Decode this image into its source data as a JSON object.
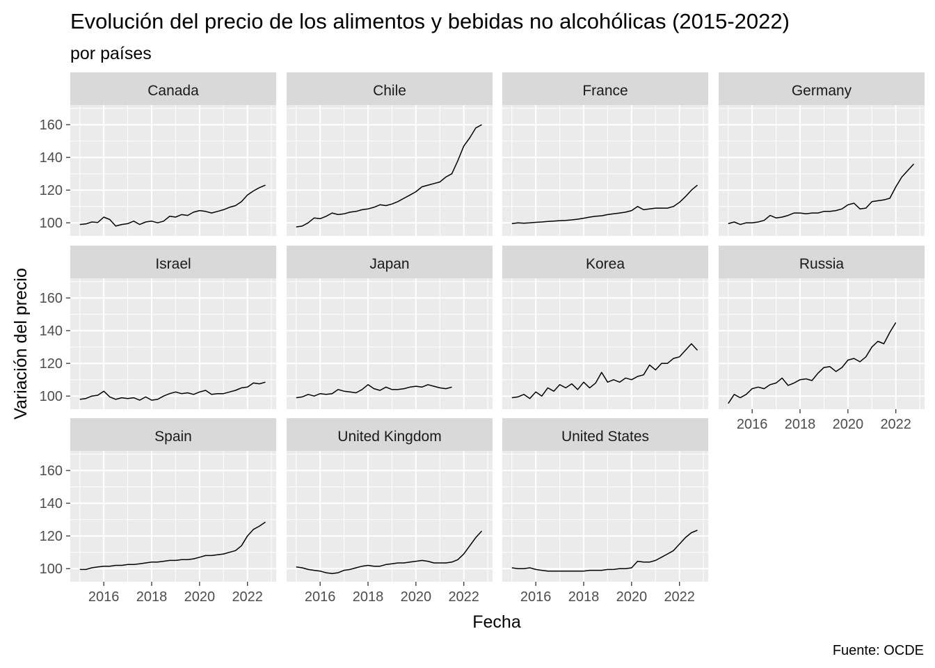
{
  "chart_data": {
    "type": "line",
    "title": "Evolución del precio de los alimentos y bebidas no alcohólicas (2015-2022)",
    "subtitle": "por países",
    "xlabel": "Fecha",
    "ylabel": "Variación del precio",
    "caption": "Fuente: OCDE",
    "xlim": [
      2014.6,
      2023.2
    ],
    "ylim": [
      92,
      172
    ],
    "x_ticks": [
      2016,
      2018,
      2020,
      2022
    ],
    "x_tick_labels": [
      "2016",
      "2018",
      "2020",
      "2022"
    ],
    "y_ticks": [
      100,
      120,
      140,
      160
    ],
    "y_tick_labels": [
      "100",
      "120",
      "140",
      "160"
    ],
    "grid": true,
    "facets": [
      {
        "name": "Canada",
        "x": [
          2015.0,
          2015.25,
          2015.5,
          2015.75,
          2016.0,
          2016.25,
          2016.5,
          2016.75,
          2017.0,
          2017.25,
          2017.5,
          2017.75,
          2018.0,
          2018.25,
          2018.5,
          2018.75,
          2019.0,
          2019.25,
          2019.5,
          2019.75,
          2020.0,
          2020.25,
          2020.5,
          2020.75,
          2021.0,
          2021.25,
          2021.5,
          2021.75,
          2022.0,
          2022.25,
          2022.5,
          2022.75
        ],
        "y": [
          99,
          99.3,
          100.5,
          100.2,
          103.5,
          102,
          98,
          99,
          99.5,
          101,
          99,
          100.5,
          101,
          100,
          101,
          104,
          103.5,
          105,
          104.5,
          106.5,
          107.5,
          107,
          106,
          107,
          108,
          109.5,
          110.5,
          113,
          117,
          119.5,
          121.5,
          123
        ]
      },
      {
        "name": "Chile",
        "x": [
          2015.0,
          2015.25,
          2015.5,
          2015.75,
          2016.0,
          2016.25,
          2016.5,
          2016.75,
          2017.0,
          2017.25,
          2017.5,
          2017.75,
          2018.0,
          2018.25,
          2018.5,
          2018.75,
          2019.0,
          2019.25,
          2019.5,
          2019.75,
          2020.0,
          2020.25,
          2020.5,
          2020.75,
          2021.0,
          2021.25,
          2021.5,
          2021.75,
          2022.0,
          2022.25,
          2022.5,
          2022.75
        ],
        "y": [
          97.5,
          98,
          100,
          103,
          102.5,
          104,
          106,
          105,
          105.5,
          106.5,
          107,
          108,
          108.5,
          109.5,
          111,
          110.5,
          111.5,
          113,
          115,
          117,
          119,
          122,
          123,
          124,
          125,
          128,
          130,
          138,
          147,
          152,
          158,
          160
        ]
      },
      {
        "name": "France",
        "x": [
          2015.0,
          2015.25,
          2015.5,
          2015.75,
          2016.0,
          2016.25,
          2016.5,
          2016.75,
          2017.0,
          2017.25,
          2017.5,
          2017.75,
          2018.0,
          2018.25,
          2018.5,
          2018.75,
          2019.0,
          2019.25,
          2019.5,
          2019.75,
          2020.0,
          2020.25,
          2020.5,
          2020.75,
          2021.0,
          2021.25,
          2021.5,
          2021.75,
          2022.0,
          2022.25,
          2022.5,
          2022.75
        ],
        "y": [
          99.5,
          100,
          99.8,
          100,
          100.3,
          100.5,
          100.8,
          101,
          101.3,
          101.5,
          101.8,
          102.2,
          102.8,
          103.5,
          104,
          104.3,
          105,
          105.5,
          106,
          106.5,
          107.5,
          110,
          108,
          108.5,
          109,
          109,
          109,
          110,
          112.5,
          116,
          120,
          123
        ]
      },
      {
        "name": "Germany",
        "x": [
          2015.0,
          2015.25,
          2015.5,
          2015.75,
          2016.0,
          2016.25,
          2016.5,
          2016.75,
          2017.0,
          2017.25,
          2017.5,
          2017.75,
          2018.0,
          2018.25,
          2018.5,
          2018.75,
          2019.0,
          2019.25,
          2019.5,
          2019.75,
          2020.0,
          2020.25,
          2020.5,
          2020.75,
          2021.0,
          2021.25,
          2021.5,
          2021.75,
          2022.0,
          2022.25,
          2022.5,
          2022.75
        ],
        "y": [
          99.5,
          100.5,
          99,
          100,
          100,
          100.5,
          101.5,
          104.5,
          103,
          103.5,
          104.5,
          106,
          106,
          105.5,
          106,
          106,
          107,
          107,
          107.5,
          108.5,
          111,
          112,
          108.5,
          109,
          113,
          113.5,
          114,
          115,
          122,
          128,
          132,
          136
        ]
      },
      {
        "name": "Israel",
        "x": [
          2015.0,
          2015.25,
          2015.5,
          2015.75,
          2016.0,
          2016.25,
          2016.5,
          2016.75,
          2017.0,
          2017.25,
          2017.5,
          2017.75,
          2018.0,
          2018.25,
          2018.5,
          2018.75,
          2019.0,
          2019.25,
          2019.5,
          2019.75,
          2020.0,
          2020.25,
          2020.5,
          2020.75,
          2021.0,
          2021.25,
          2021.5,
          2021.75,
          2022.0,
          2022.25,
          2022.5,
          2022.75
        ],
        "y": [
          98,
          98.5,
          100,
          100.5,
          103,
          99.5,
          98,
          99,
          98.5,
          99,
          97.5,
          99.5,
          97.5,
          98,
          100,
          101.5,
          102.5,
          101.5,
          102,
          101,
          102.5,
          103.5,
          101,
          101.5,
          101.5,
          102.5,
          103.5,
          105,
          105.5,
          108,
          107.5,
          108.5
        ]
      },
      {
        "name": "Japan",
        "x": [
          2015.0,
          2015.25,
          2015.5,
          2015.75,
          2016.0,
          2016.25,
          2016.5,
          2016.75,
          2017.0,
          2017.25,
          2017.5,
          2017.75,
          2018.0,
          2018.25,
          2018.5,
          2018.75,
          2019.0,
          2019.25,
          2019.5,
          2019.75,
          2020.0,
          2020.25,
          2020.5,
          2020.75,
          2021.0,
          2021.25,
          2021.5
        ],
        "y": [
          99,
          99.5,
          101,
          100,
          101.5,
          101,
          101.5,
          104,
          103,
          102.5,
          102,
          104,
          107,
          104.5,
          103.5,
          105.5,
          104,
          104,
          104.5,
          105.5,
          106,
          105.5,
          107,
          106,
          105,
          104.5,
          105.5
        ]
      },
      {
        "name": "Korea",
        "x": [
          2015.0,
          2015.25,
          2015.5,
          2015.75,
          2016.0,
          2016.25,
          2016.5,
          2016.75,
          2017.0,
          2017.25,
          2017.5,
          2017.75,
          2018.0,
          2018.25,
          2018.5,
          2018.75,
          2019.0,
          2019.25,
          2019.5,
          2019.75,
          2020.0,
          2020.25,
          2020.5,
          2020.75,
          2021.0,
          2021.25,
          2021.5,
          2021.75,
          2022.0,
          2022.25,
          2022.5,
          2022.75
        ],
        "y": [
          99,
          99.5,
          101,
          98.5,
          102.5,
          100,
          105,
          103,
          107,
          105,
          107.5,
          104,
          108.5,
          105,
          108,
          114.5,
          108.5,
          110,
          108.5,
          111,
          110,
          112,
          113,
          119,
          116,
          120,
          120,
          123,
          124,
          128,
          132,
          128
        ]
      },
      {
        "name": "Russia",
        "x": [
          2015.0,
          2015.25,
          2015.5,
          2015.75,
          2016.0,
          2016.25,
          2016.5,
          2016.75,
          2017.0,
          2017.25,
          2017.5,
          2017.75,
          2018.0,
          2018.25,
          2018.5,
          2018.75,
          2019.0,
          2019.25,
          2019.5,
          2019.75,
          2020.0,
          2020.25,
          2020.5,
          2020.75,
          2021.0,
          2021.25,
          2021.5,
          2021.75,
          2022.0
        ],
        "y": [
          95.5,
          101,
          99,
          101,
          104.5,
          105.5,
          104.5,
          107,
          108,
          111,
          106.5,
          108,
          110,
          110.5,
          109.5,
          114,
          117.5,
          118,
          115,
          117.5,
          122,
          123,
          121,
          124,
          130,
          133.5,
          132,
          139,
          145
        ]
      },
      {
        "name": "Spain",
        "x": [
          2015.0,
          2015.25,
          2015.5,
          2015.75,
          2016.0,
          2016.25,
          2016.5,
          2016.75,
          2017.0,
          2017.25,
          2017.5,
          2017.75,
          2018.0,
          2018.25,
          2018.5,
          2018.75,
          2019.0,
          2019.25,
          2019.5,
          2019.75,
          2020.0,
          2020.25,
          2020.5,
          2020.75,
          2021.0,
          2021.25,
          2021.5,
          2021.75,
          2022.0,
          2022.25,
          2022.5,
          2022.75
        ],
        "y": [
          99.5,
          99.5,
          100.5,
          101,
          101.5,
          101.5,
          102,
          102,
          102.5,
          102.5,
          103,
          103.5,
          104,
          104,
          104.5,
          105,
          105,
          105.5,
          105.5,
          106,
          107,
          108,
          108,
          108.5,
          109,
          110,
          111,
          114,
          120,
          124,
          126,
          128.5
        ]
      },
      {
        "name": "United Kingdom",
        "x": [
          2015.0,
          2015.25,
          2015.5,
          2015.75,
          2016.0,
          2016.25,
          2016.5,
          2016.75,
          2017.0,
          2017.25,
          2017.5,
          2017.75,
          2018.0,
          2018.25,
          2018.5,
          2018.75,
          2019.0,
          2019.25,
          2019.5,
          2019.75,
          2020.0,
          2020.25,
          2020.5,
          2020.75,
          2021.0,
          2021.25,
          2021.5,
          2021.75,
          2022.0,
          2022.25,
          2022.5,
          2022.75
        ],
        "y": [
          101,
          100.5,
          99.5,
          99,
          98.5,
          97.5,
          97,
          97.5,
          99,
          99.5,
          100.5,
          101.5,
          102,
          101.5,
          101.5,
          102.5,
          103,
          103.5,
          103.5,
          104,
          104.5,
          105,
          104.5,
          103.5,
          103.5,
          103.5,
          104,
          105.5,
          109,
          114,
          119,
          123
        ]
      },
      {
        "name": "United States",
        "x": [
          2015.0,
          2015.25,
          2015.5,
          2015.75,
          2016.0,
          2016.25,
          2016.5,
          2016.75,
          2017.0,
          2017.25,
          2017.5,
          2017.75,
          2018.0,
          2018.25,
          2018.5,
          2018.75,
          2019.0,
          2019.25,
          2019.5,
          2019.75,
          2020.0,
          2020.25,
          2020.5,
          2020.75,
          2021.0,
          2021.25,
          2021.5,
          2021.75,
          2022.0,
          2022.25,
          2022.5,
          2022.75
        ],
        "y": [
          100.5,
          100,
          100,
          100.5,
          99.5,
          99,
          98.5,
          98.5,
          98.5,
          98.5,
          98.5,
          98.5,
          98.5,
          99,
          99,
          99,
          99.5,
          99.5,
          100,
          100,
          100.5,
          104.5,
          104,
          104,
          105,
          107,
          109,
          111,
          115,
          119,
          122,
          123.5
        ]
      }
    ]
  }
}
